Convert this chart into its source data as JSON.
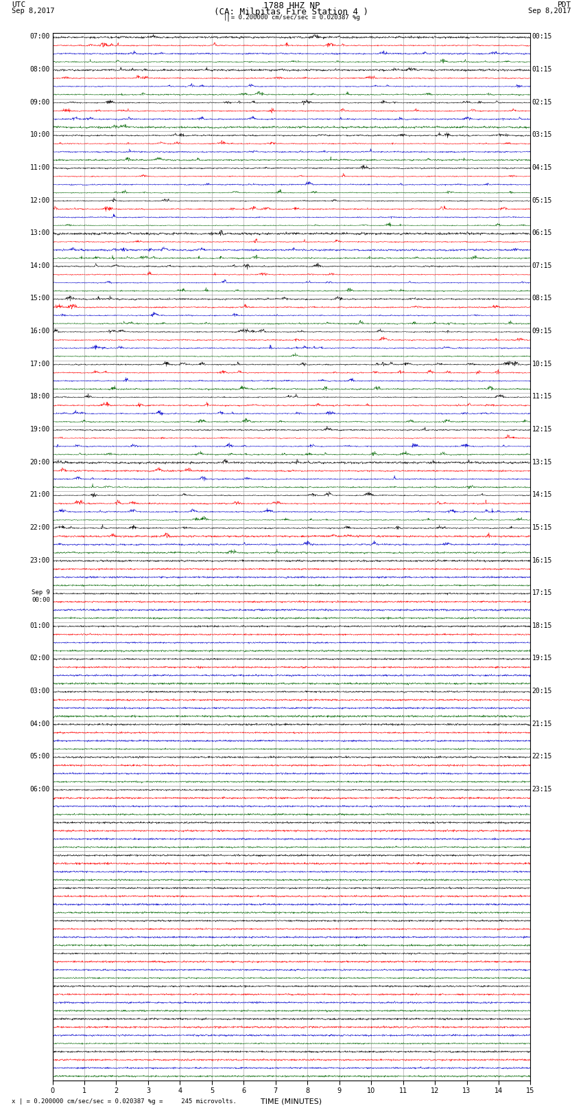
{
  "title_line1": "1788 HHZ NP",
  "title_line2": "(CA: Milpitas Fire Station 4 )",
  "scale_text": "| = 0.200000 cm/sec/sec = 0.020387 %g",
  "utc_label": "UTC",
  "pdt_label": "PDT",
  "date_left": "Sep 8,2017",
  "date_right": "Sep 8,2017",
  "footer_text": "x | = 0.200000 cm/sec/sec = 0.020387 %g =     245 microvolts.",
  "xlabel": "TIME (MINUTES)",
  "bg_color": "#ffffff",
  "grid_color": "#aaaaaa",
  "trace_colors_per_group": [
    "#000000",
    "#ff0000",
    "#0000cc",
    "#006600"
  ],
  "num_hour_bands": 32,
  "traces_per_band": 4,
  "minutes_per_row": 15,
  "xlim": [
    0,
    15
  ],
  "figsize": [
    8.5,
    16.13
  ],
  "dpi": 100,
  "title_fontsize": 9,
  "label_fontsize": 8,
  "tick_fontsize": 7,
  "left_labels": [
    "07:00",
    "08:00",
    "09:00",
    "10:00",
    "11:00",
    "12:00",
    "13:00",
    "14:00",
    "15:00",
    "16:00",
    "17:00",
    "18:00",
    "19:00",
    "20:00",
    "21:00",
    "22:00",
    "23:00",
    "Sep 9\n00:00",
    "01:00",
    "02:00",
    "03:00",
    "04:00",
    "05:00",
    "06:00",
    "",
    "",
    "",
    "",
    "",
    "",
    "",
    ""
  ],
  "right_labels": [
    "00:15",
    "01:15",
    "02:15",
    "03:15",
    "04:15",
    "05:15",
    "06:15",
    "07:15",
    "08:15",
    "09:15",
    "10:15",
    "11:15",
    "12:15",
    "13:15",
    "14:15",
    "15:15",
    "16:15",
    "17:15",
    "18:15",
    "19:15",
    "20:15",
    "21:15",
    "22:15",
    "23:15",
    "",
    "",
    "",
    "",
    "",
    "",
    "",
    ""
  ],
  "active_bands": 16,
  "semi_active_bands": 7
}
